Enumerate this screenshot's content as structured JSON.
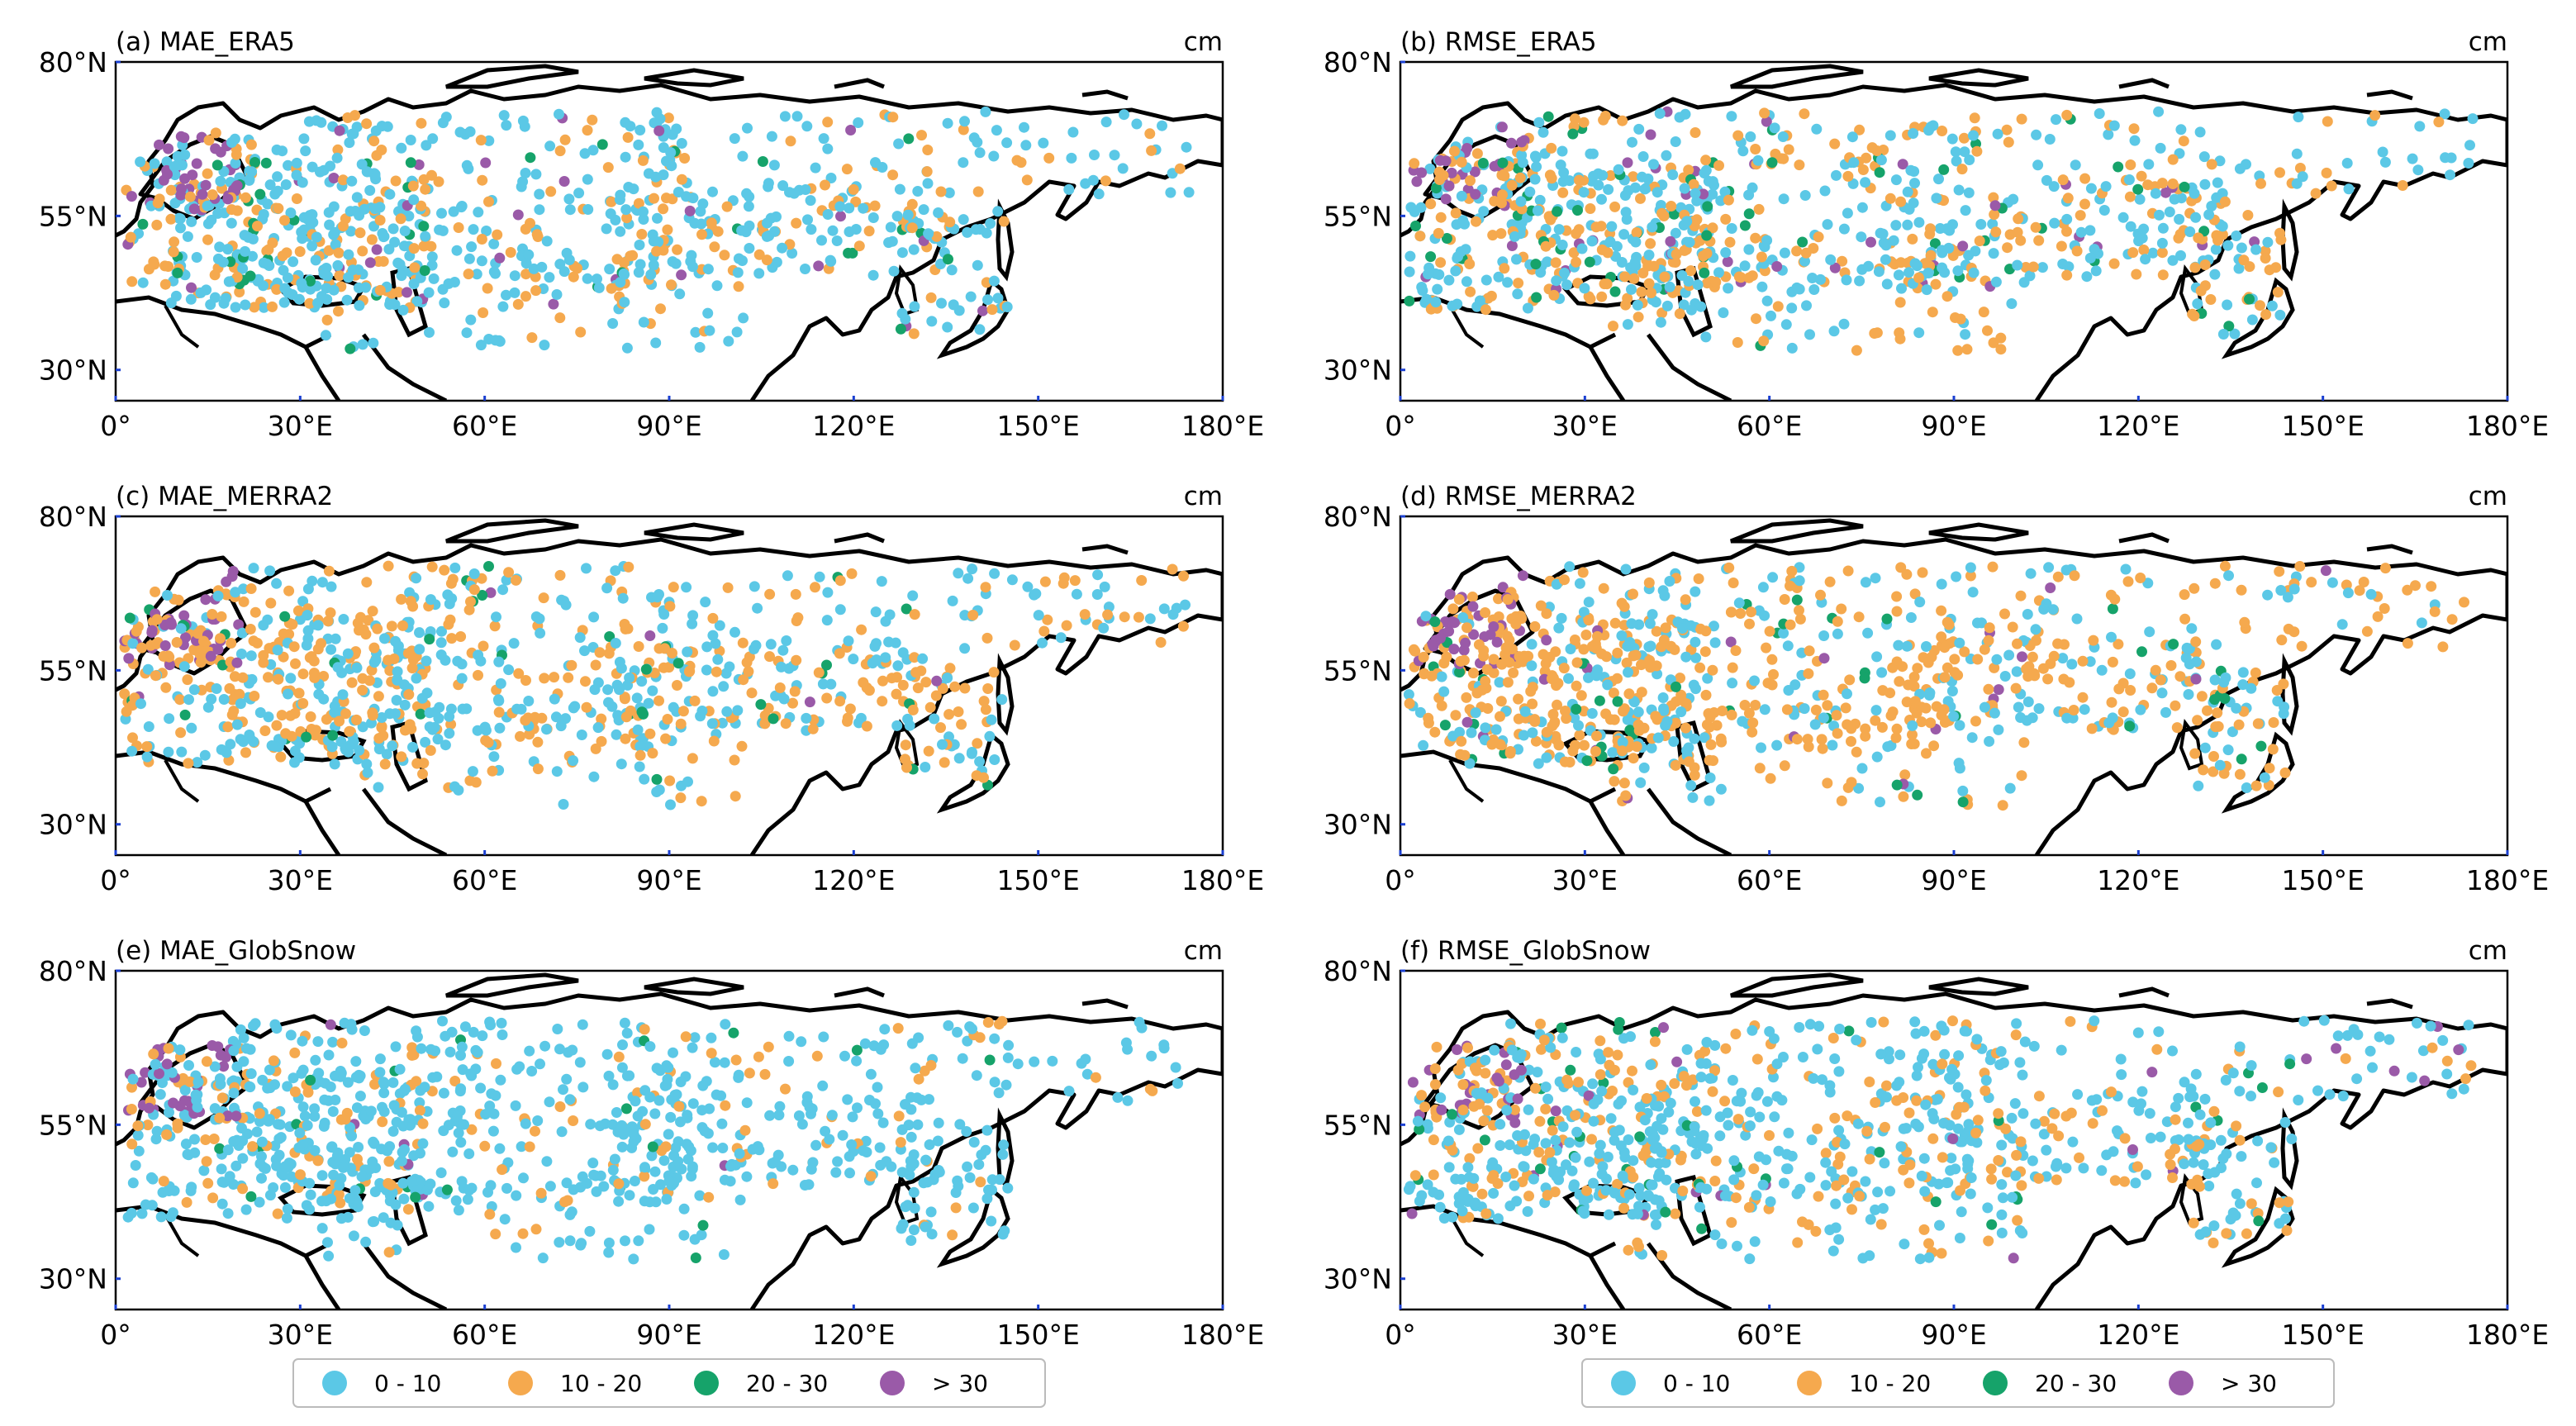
{
  "figure": {
    "unit": "cm",
    "x_ticks": [
      "0°",
      "30°E",
      "60°E",
      "90°E",
      "120°E",
      "150°E",
      "180°E"
    ],
    "y_ticks": [
      "80°N",
      "55°N",
      "30°N"
    ],
    "x_tick_degrees": [
      0,
      30,
      60,
      90,
      120,
      150,
      180
    ],
    "y_tick_degrees": [
      80,
      55,
      30
    ],
    "lon_range": [
      0,
      180
    ],
    "lat_range": [
      25,
      80
    ],
    "panels": [
      {
        "id": "a",
        "title": "(a) MAE_ERA5"
      },
      {
        "id": "b",
        "title": "(b) RMSE_ERA5"
      },
      {
        "id": "c",
        "title": "(c) MAE_MERRA2"
      },
      {
        "id": "d",
        "title": "(d) RMSE_MERRA2"
      },
      {
        "id": "e",
        "title": "(e) MAE_GlobSnow"
      },
      {
        "id": "f",
        "title": "(f) RMSE_GlobSnow"
      }
    ],
    "legend": [
      {
        "label": "0 - 10",
        "color": "#5bc8e6"
      },
      {
        "label": "10 - 20",
        "color": "#f5a94e"
      },
      {
        "label": "20 - 30",
        "color": "#16a36a"
      },
      {
        "label": "> 30",
        "color": "#9a5aa8"
      }
    ]
  },
  "chart_data": {
    "type": "scatter",
    "description_units": "station error categories in cm",
    "categories": [
      "0 - 10",
      "10 - 20",
      "20 - 30",
      "> 30"
    ],
    "panels": [
      {
        "id": "a",
        "title": "(a) MAE_ERA5",
        "category_weights": [
          0.62,
          0.3,
          0.05,
          0.03
        ]
      },
      {
        "id": "b",
        "title": "(b) RMSE_ERA5",
        "category_weights": [
          0.52,
          0.38,
          0.06,
          0.04
        ]
      },
      {
        "id": "c",
        "title": "(c) MAE_MERRA2",
        "category_weights": [
          0.5,
          0.45,
          0.04,
          0.01
        ]
      },
      {
        "id": "d",
        "title": "(d) RMSE_MERRA2",
        "category_weights": [
          0.38,
          0.55,
          0.05,
          0.02
        ]
      },
      {
        "id": "e",
        "title": "(e) MAE_GlobSnow",
        "category_weights": [
          0.8,
          0.16,
          0.03,
          0.01
        ]
      },
      {
        "id": "f",
        "title": "(f) RMSE_GlobSnow",
        "category_weights": [
          0.62,
          0.31,
          0.05,
          0.02
        ]
      }
    ],
    "xlabel": "",
    "ylabel": "",
    "xlim": [
      0,
      180
    ],
    "ylim": [
      25,
      80
    ]
  }
}
